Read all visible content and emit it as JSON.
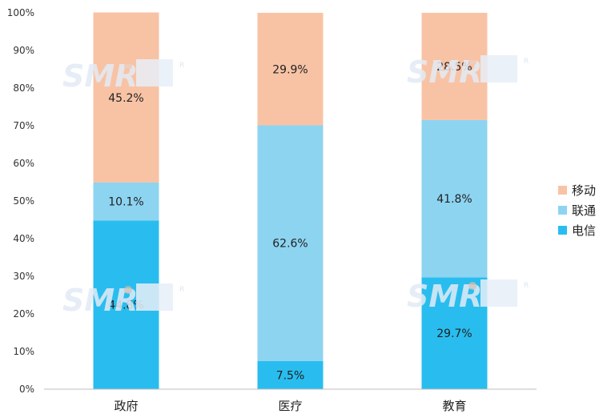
{
  "chart_data": {
    "type": "bar",
    "stacked": true,
    "percent_stacked": true,
    "title": "",
    "xlabel": "",
    "ylabel": "",
    "ylim": [
      0,
      100
    ],
    "yticks": [
      0,
      10,
      20,
      30,
      40,
      50,
      60,
      70,
      80,
      90,
      100
    ],
    "ytick_labels": [
      "0%",
      "10%",
      "20%",
      "30%",
      "40%",
      "50%",
      "60%",
      "70%",
      "80%",
      "90%",
      "100%"
    ],
    "categories": [
      "政府",
      "医疗",
      "教育"
    ],
    "series": [
      {
        "name": "电信",
        "color": "#29bdef",
        "values": [
          44.8,
          7.5,
          29.7
        ],
        "labels": [
          "44.8%",
          "7.5%",
          "29.7%"
        ]
      },
      {
        "name": "联通",
        "color": "#8dd4f1",
        "values": [
          10.1,
          62.6,
          41.8
        ],
        "labels": [
          "10.1%",
          "62.6%",
          "41.8%"
        ]
      },
      {
        "name": "移动",
        "color": "#f8c3a5",
        "values": [
          45.2,
          29.9,
          28.5
        ],
        "labels": [
          "45.2%",
          "29.9%",
          "28.5%"
        ]
      }
    ],
    "legend_order": [
      2,
      1,
      0
    ],
    "legend_position": "right",
    "grid": false
  },
  "watermark": {
    "text": "SMR",
    "mark": "R"
  }
}
